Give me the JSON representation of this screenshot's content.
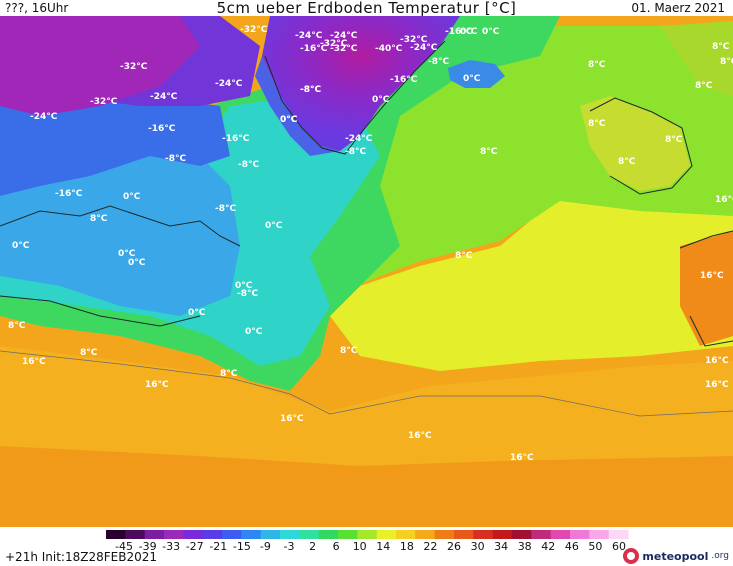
{
  "header": {
    "left": "???, 16Uhr",
    "title": "5cm ueber Erdboden Temperatur [°C]",
    "date": "01. Maerz 2021"
  },
  "footer": {
    "run_info": "+21h  Init:18Z28FEB2021",
    "brand_name": "meteopool",
    "brand_tld": ".org"
  },
  "colorbar": {
    "ticks": [
      "-45",
      "-39",
      "-33",
      "-27",
      "-21",
      "-15",
      "-9",
      "-3",
      "2",
      "6",
      "10",
      "14",
      "18",
      "22",
      "26",
      "30",
      "34",
      "38",
      "42",
      "46",
      "50",
      "60"
    ],
    "colors": [
      "#2a0030",
      "#4b0b5a",
      "#7b1fa0",
      "#9a2ab8",
      "#7a2ad8",
      "#5a3be8",
      "#3c5df0",
      "#2f86f0",
      "#2fb5e8",
      "#2fd8d8",
      "#30e0a0",
      "#33d860",
      "#5ae030",
      "#a5e82a",
      "#e8f02a",
      "#f5d020",
      "#f5a81a",
      "#f07c18",
      "#e8581a",
      "#d83020",
      "#c01a1a",
      "#a01030",
      "#c02a7a",
      "#e04ab0",
      "#f078d8",
      "#f8a8e8",
      "#fcd8f4"
    ]
  },
  "map_labels": [
    "-32°C",
    "-24°C",
    "-24°C",
    "-32°C",
    "0°C",
    "-16°C",
    "-32°C",
    "-40°C",
    "-32°C",
    "-24°C",
    "-16°C",
    "0°C",
    "8°C",
    "-32°C",
    "-24°C",
    "-8°C",
    "-16°C",
    "0°C",
    "8°C",
    "-8°C",
    "-32°C",
    "-24°C",
    "-24°C",
    "-8°C",
    "0°C",
    "0°C",
    "8°C",
    "8°C",
    "0°C",
    "-16°C",
    "-16°C",
    "-24°C",
    "-8°C",
    "8°C",
    "8°C",
    "-8°C",
    "-8°C",
    "8°C",
    "16°C",
    "-16°C",
    "0°C",
    "-8°C",
    "8°C",
    "0°C",
    "0°C",
    "8°C",
    "0°C",
    "0°C",
    "-8°C",
    "16°C",
    "8°C",
    "0°C",
    "0°C",
    "0°C",
    "8°C",
    "8°C",
    "16°C",
    "8°C",
    "16°C",
    "8°C",
    "16°C",
    "16°C",
    "16°C",
    "16°C",
    "16°C"
  ]
}
